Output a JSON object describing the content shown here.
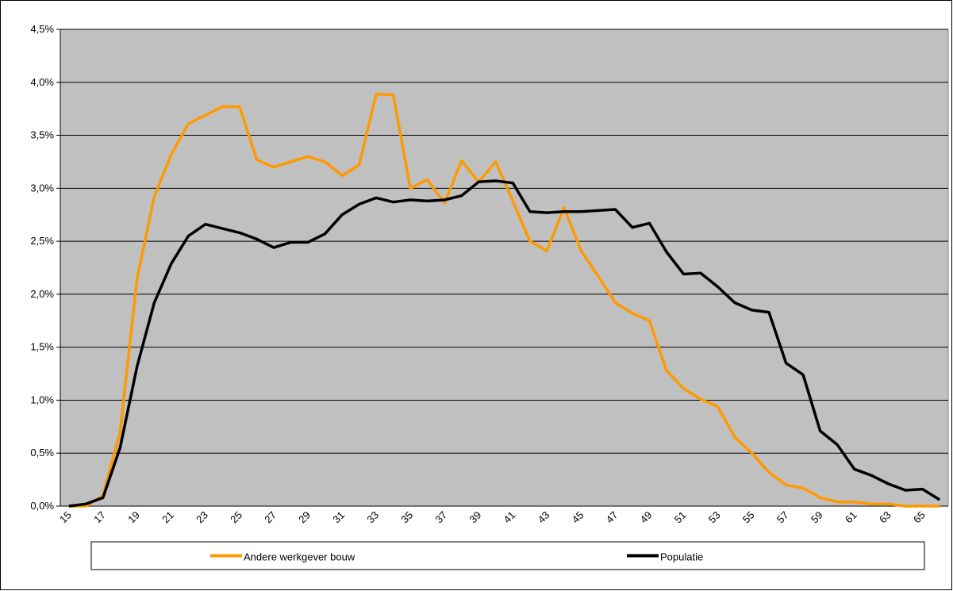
{
  "chart_data": {
    "type": "line",
    "categories": [
      "15",
      null,
      "17",
      null,
      "19",
      null,
      "21",
      null,
      "23",
      null,
      "25",
      null,
      "27",
      null,
      "29",
      null,
      "31",
      null,
      "33",
      null,
      "35",
      null,
      "37",
      null,
      "39",
      null,
      "41",
      null,
      "43",
      null,
      "45",
      null,
      "47",
      null,
      "49",
      null,
      "51",
      null,
      "53",
      null,
      "55",
      null,
      "57",
      null,
      "59",
      null,
      "61",
      null,
      "63",
      null,
      "65",
      null
    ],
    "series": [
      {
        "name": "Andere werkgever bouw",
        "color": "#ff9900",
        "values": [
          0,
          0,
          0.1,
          0.7,
          2.15,
          2.92,
          3.32,
          3.61,
          3.69,
          3.77,
          3.77,
          3.27,
          3.2,
          3.25,
          3.3,
          3.25,
          3.12,
          3.22,
          3.89,
          3.88,
          3.0,
          3.08,
          2.86,
          3.26,
          3.06,
          3.25,
          2.88,
          2.5,
          2.41,
          2.82,
          2.41,
          2.17,
          1.92,
          1.82,
          1.75,
          1.28,
          1.11,
          1.01,
          0.94,
          0.65,
          0.5,
          0.32,
          0.2,
          0.17,
          0.08,
          0.04,
          0.04,
          0.02,
          0.02,
          0,
          0,
          0
        ]
      },
      {
        "name": "Populatie",
        "color": "#000000",
        "values": [
          0,
          0.02,
          0.08,
          0.55,
          1.32,
          1.92,
          2.29,
          2.55,
          2.66,
          2.62,
          2.58,
          2.52,
          2.44,
          2.49,
          2.49,
          2.57,
          2.75,
          2.85,
          2.91,
          2.87,
          2.89,
          2.88,
          2.89,
          2.93,
          3.06,
          3.07,
          3.05,
          2.78,
          2.77,
          2.78,
          2.78,
          2.79,
          2.8,
          2.63,
          2.67,
          2.4,
          2.19,
          2.2,
          2.07,
          1.92,
          1.85,
          1.83,
          1.35,
          1.24,
          0.71,
          0.58,
          0.35,
          0.29,
          0.21,
          0.15,
          0.16,
          0.06
        ]
      }
    ],
    "ylim": [
      0,
      4.5
    ],
    "yticks": [
      {
        "value": 0,
        "label": "0,0%"
      },
      {
        "value": 0.5,
        "label": "0,5%"
      },
      {
        "value": 1,
        "label": "1,0%"
      },
      {
        "value": 1.5,
        "label": "1,5%"
      },
      {
        "value": 2,
        "label": "2,0%"
      },
      {
        "value": 2.5,
        "label": "2,5%"
      },
      {
        "value": 3,
        "label": "3,0%"
      },
      {
        "value": 3.5,
        "label": "3,5%"
      },
      {
        "value": 4,
        "label": "4,0%"
      },
      {
        "value": 4.5,
        "label": "4,5%"
      }
    ],
    "grid": true,
    "background": "#c0c0c0",
    "legend": "bottom"
  }
}
